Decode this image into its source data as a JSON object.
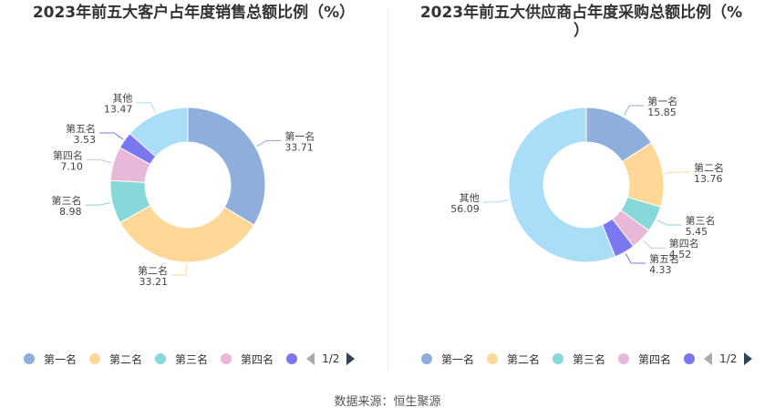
{
  "colors": [
    "#8eaedb",
    "#ffd797",
    "#86d8d9",
    "#e9b8d9",
    "#7b77f0",
    "#a9ddf8"
  ],
  "footer": "数据来源：恒生聚源",
  "pager": "1/2",
  "chart_data": [
    {
      "type": "pie",
      "title": "2023年前五大客户占年度销售总额比例（%）",
      "labels": [
        "第一名",
        "第二名",
        "第三名",
        "第四名",
        "第五名",
        "其他"
      ],
      "values": [
        33.71,
        33.21,
        8.98,
        7.1,
        3.53,
        13.47
      ],
      "value_labels": [
        "33.71",
        "33.21",
        "8.98",
        "7.10",
        "3.53",
        "13.47"
      ],
      "legend": [
        "第一名",
        "第二名",
        "第三名",
        "第四名"
      ],
      "legend_position": "bottom"
    },
    {
      "type": "pie",
      "title": "2023年前五大供应商占年度采购总额比例（%\n）",
      "labels": [
        "第一名",
        "第二名",
        "第三名",
        "第四名",
        "第五名",
        "其他"
      ],
      "values": [
        15.85,
        13.76,
        5.45,
        4.52,
        4.33,
        56.09
      ],
      "value_labels": [
        "15.85",
        "13.76",
        "5.45",
        "4.52",
        "4.33",
        "56.09"
      ],
      "legend": [
        "第一名",
        "第二名",
        "第三名",
        "第四名"
      ],
      "legend_position": "bottom"
    }
  ]
}
